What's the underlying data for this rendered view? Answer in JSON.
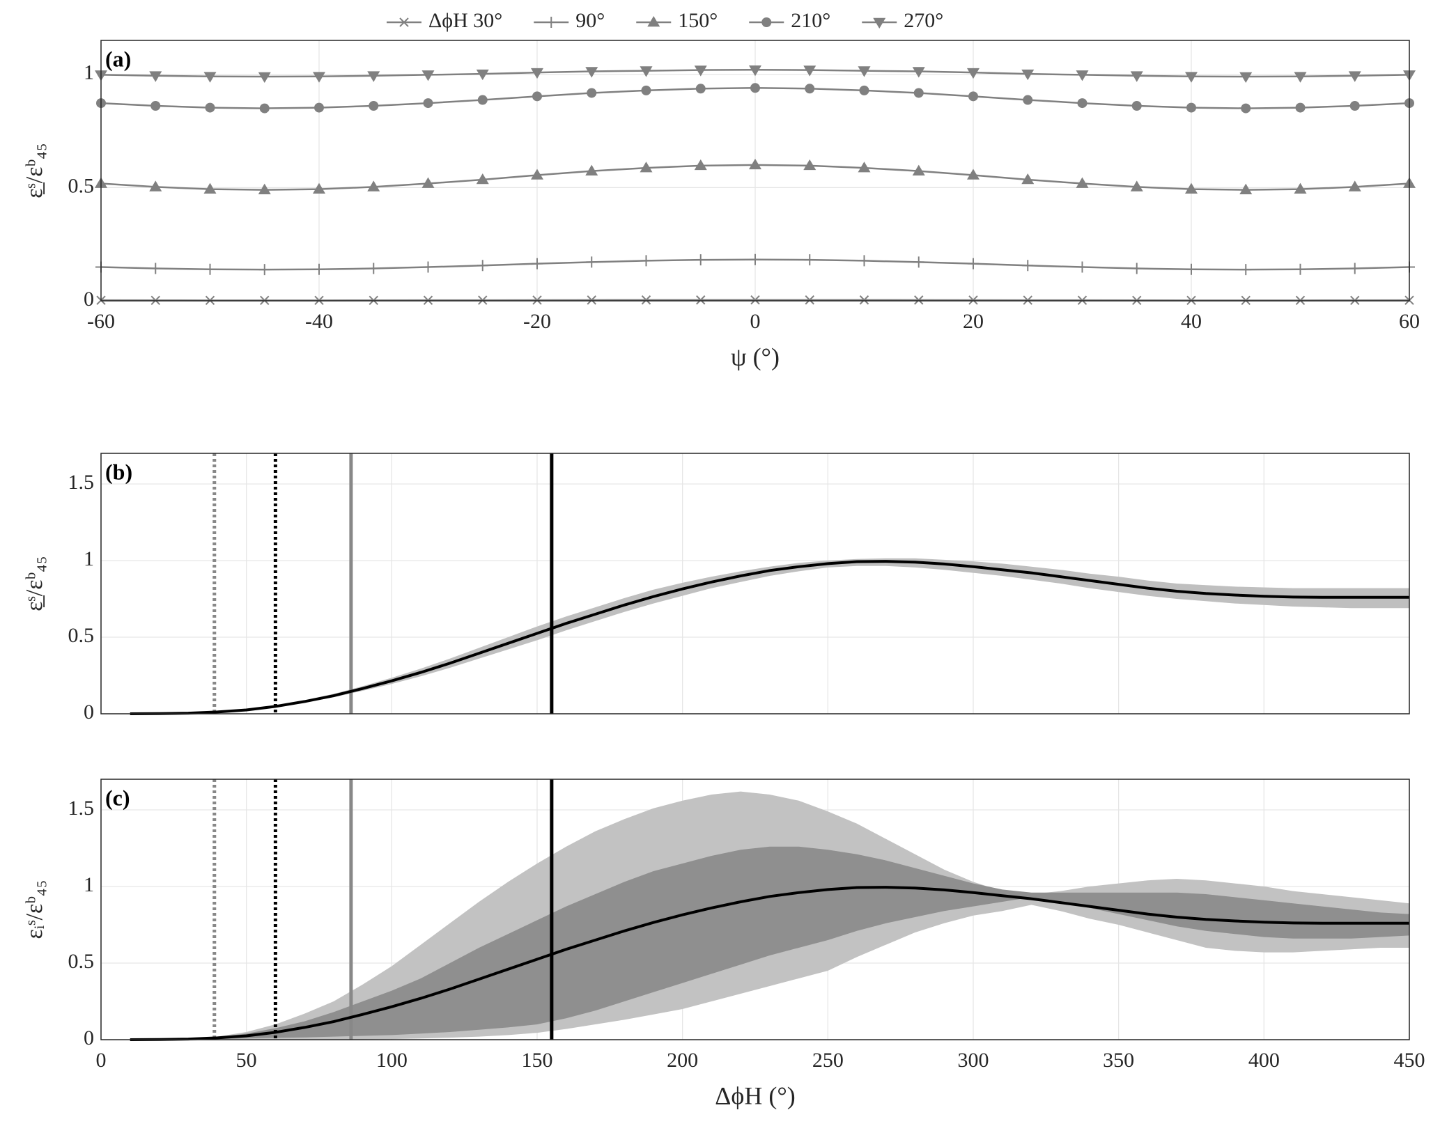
{
  "chart_data": [
    {
      "type": "line",
      "panel_label": "(a)",
      "xlabel": "ψ (°)",
      "ylabel": "ε̲ˢ/εᵇ₄₅",
      "xlim": [
        -60,
        60
      ],
      "xticks": [
        -60,
        -40,
        -20,
        0,
        20,
        40,
        60
      ],
      "ylim": [
        0,
        1.15
      ],
      "yticks": [
        0,
        0.5,
        1
      ],
      "grid": true,
      "legend": "top",
      "x": [
        -60,
        -55,
        -50,
        -45,
        -40,
        -35,
        -30,
        -25,
        -20,
        -15,
        -10,
        -5,
        0,
        5,
        10,
        15,
        20,
        25,
        30,
        35,
        40,
        45,
        50,
        55,
        60
      ],
      "series": [
        {
          "name": "ΔϕH 30°",
          "color": "#808080",
          "marker": "x",
          "values": [
            0.0025,
            0.0022,
            0.0021,
            0.002,
            0.0021,
            0.0022,
            0.0025,
            0.0028,
            0.0032,
            0.0035,
            0.0038,
            0.0039,
            0.004,
            0.0039,
            0.0038,
            0.0035,
            0.0032,
            0.0028,
            0.0025,
            0.0022,
            0.0021,
            0.002,
            0.0021,
            0.0022,
            0.0025
          ]
        },
        {
          "name": "90°",
          "color": "#808080",
          "marker": "+",
          "values": [
            0.149,
            0.143,
            0.139,
            0.138,
            0.139,
            0.143,
            0.149,
            0.156,
            0.164,
            0.171,
            0.177,
            0.181,
            0.182,
            0.181,
            0.177,
            0.171,
            0.164,
            0.156,
            0.149,
            0.143,
            0.139,
            0.138,
            0.139,
            0.143,
            0.149
          ]
        },
        {
          "name": "150°",
          "color": "#808080",
          "marker": "^",
          "values": [
            0.518,
            0.503,
            0.493,
            0.49,
            0.493,
            0.503,
            0.518,
            0.535,
            0.555,
            0.573,
            0.587,
            0.597,
            0.6,
            0.597,
            0.587,
            0.573,
            0.555,
            0.535,
            0.518,
            0.503,
            0.493,
            0.49,
            0.493,
            0.503,
            0.518
          ]
        },
        {
          "name": "210°",
          "color": "#808080",
          "marker": "o",
          "values": [
            0.873,
            0.861,
            0.853,
            0.85,
            0.853,
            0.861,
            0.873,
            0.887,
            0.903,
            0.918,
            0.929,
            0.937,
            0.94,
            0.937,
            0.929,
            0.918,
            0.903,
            0.887,
            0.873,
            0.861,
            0.853,
            0.85,
            0.853,
            0.861,
            0.873
          ]
        },
        {
          "name": "270°",
          "color": "#808080",
          "marker": "v",
          "values": [
            0.998,
            0.994,
            0.991,
            0.99,
            0.991,
            0.994,
            0.998,
            1.002,
            1.008,
            1.013,
            1.016,
            1.019,
            1.02,
            1.019,
            1.016,
            1.013,
            1.008,
            1.002,
            0.998,
            0.994,
            0.991,
            0.99,
            0.991,
            0.994,
            0.998
          ]
        }
      ]
    },
    {
      "type": "band",
      "panel_label": "(b)",
      "ylabel": "ε̲ˢ/εᵇ₄₅",
      "xlim": [
        0,
        450
      ],
      "xticks": [
        0,
        50,
        100,
        150,
        200,
        250,
        300,
        350,
        400,
        450
      ],
      "xtick_labels": false,
      "ylim": [
        0,
        1.7
      ],
      "yticks": [
        0,
        0.5,
        1,
        1.5
      ],
      "grid": true,
      "vlines": [
        {
          "x": 39,
          "color": "#888888",
          "dash": true
        },
        {
          "x": 60,
          "color": "#000000",
          "dash": true
        },
        {
          "x": 86,
          "color": "#888888",
          "dash": false
        },
        {
          "x": 155,
          "color": "#000000",
          "dash": false
        }
      ],
      "x": [
        10,
        20,
        30,
        40,
        50,
        60,
        70,
        80,
        90,
        100,
        110,
        120,
        130,
        140,
        150,
        160,
        170,
        180,
        190,
        200,
        210,
        220,
        230,
        240,
        250,
        260,
        270,
        280,
        290,
        300,
        310,
        320,
        330,
        340,
        350,
        360,
        370,
        380,
        390,
        400,
        410,
        420,
        430,
        440,
        450
      ],
      "bands": [
        {
          "color": "#bfbfbf",
          "lower": [
            0,
            0,
            0.003,
            0.01,
            0.022,
            0.043,
            0.073,
            0.108,
            0.15,
            0.195,
            0.245,
            0.3,
            0.36,
            0.42,
            0.48,
            0.545,
            0.605,
            0.665,
            0.72,
            0.77,
            0.82,
            0.86,
            0.9,
            0.93,
            0.955,
            0.965,
            0.965,
            0.955,
            0.94,
            0.92,
            0.9,
            0.875,
            0.85,
            0.82,
            0.795,
            0.77,
            0.75,
            0.735,
            0.72,
            0.71,
            0.7,
            0.695,
            0.69,
            0.69,
            0.69
          ],
          "upper": [
            0,
            0.002,
            0.006,
            0.015,
            0.029,
            0.054,
            0.088,
            0.13,
            0.18,
            0.235,
            0.295,
            0.36,
            0.43,
            0.5,
            0.57,
            0.635,
            0.695,
            0.755,
            0.81,
            0.855,
            0.895,
            0.93,
            0.96,
            0.985,
            1.0,
            1.01,
            1.015,
            1.015,
            1.005,
            0.995,
            0.98,
            0.96,
            0.94,
            0.915,
            0.895,
            0.87,
            0.85,
            0.84,
            0.83,
            0.825,
            0.82,
            0.82,
            0.82,
            0.82,
            0.82
          ]
        }
      ],
      "series": [
        {
          "color": "#000000",
          "values": [
            0,
            0.001,
            0.004,
            0.012,
            0.025,
            0.048,
            0.08,
            0.118,
            0.165,
            0.215,
            0.27,
            0.33,
            0.395,
            0.46,
            0.525,
            0.59,
            0.65,
            0.71,
            0.765,
            0.815,
            0.86,
            0.9,
            0.935,
            0.96,
            0.98,
            0.993,
            0.995,
            0.99,
            0.978,
            0.96,
            0.94,
            0.92,
            0.895,
            0.87,
            0.845,
            0.82,
            0.8,
            0.785,
            0.775,
            0.767,
            0.762,
            0.76,
            0.76,
            0.76,
            0.76
          ]
        }
      ]
    },
    {
      "type": "band",
      "panel_label": "(c)",
      "xlabel": "ΔϕH (°)",
      "ylabel": "εᵢˢ/εᵇ₄₅",
      "xlim": [
        0,
        450
      ],
      "xticks": [
        0,
        50,
        100,
        150,
        200,
        250,
        300,
        350,
        400,
        450
      ],
      "ylim": [
        0,
        1.7
      ],
      "yticks": [
        0,
        0.5,
        1,
        1.5
      ],
      "grid": true,
      "vlines": [
        {
          "x": 39,
          "color": "#888888",
          "dash": true
        },
        {
          "x": 60,
          "color": "#000000",
          "dash": true
        },
        {
          "x": 86,
          "color": "#888888",
          "dash": false
        },
        {
          "x": 155,
          "color": "#000000",
          "dash": false
        }
      ],
      "x": [
        10,
        20,
        30,
        40,
        50,
        60,
        70,
        80,
        90,
        100,
        110,
        120,
        130,
        140,
        150,
        160,
        170,
        180,
        190,
        200,
        210,
        220,
        230,
        240,
        250,
        260,
        270,
        280,
        290,
        300,
        310,
        320,
        330,
        340,
        350,
        360,
        370,
        380,
        390,
        400,
        410,
        420,
        430,
        440,
        450
      ],
      "bands": [
        {
          "color": "#c2c2c2",
          "lower": [
            0,
            0,
            0,
            0,
            0,
            0,
            0,
            0.001,
            0.002,
            0.004,
            0.008,
            0.013,
            0.02,
            0.03,
            0.045,
            0.07,
            0.1,
            0.13,
            0.165,
            0.2,
            0.25,
            0.3,
            0.35,
            0.4,
            0.45,
            0.54,
            0.62,
            0.7,
            0.76,
            0.81,
            0.84,
            0.88,
            0.84,
            0.79,
            0.75,
            0.7,
            0.65,
            0.6,
            0.58,
            0.57,
            0.57,
            0.58,
            0.59,
            0.6,
            0.6
          ],
          "upper": [
            0,
            0.001,
            0.006,
            0.02,
            0.05,
            0.1,
            0.17,
            0.25,
            0.36,
            0.48,
            0.62,
            0.76,
            0.9,
            1.03,
            1.15,
            1.26,
            1.36,
            1.44,
            1.51,
            1.56,
            1.6,
            1.62,
            1.6,
            1.56,
            1.49,
            1.41,
            1.31,
            1.21,
            1.11,
            1.03,
            0.97,
            0.95,
            0.97,
            1.0,
            1.02,
            1.04,
            1.05,
            1.04,
            1.02,
            1.0,
            0.97,
            0.95,
            0.93,
            0.91,
            0.89
          ]
        },
        {
          "color": "#8f8f8f",
          "lower": [
            0,
            0,
            0.002,
            0.005,
            0.008,
            0.012,
            0.015,
            0.02,
            0.025,
            0.03,
            0.04,
            0.05,
            0.065,
            0.08,
            0.1,
            0.14,
            0.19,
            0.25,
            0.31,
            0.37,
            0.43,
            0.49,
            0.55,
            0.6,
            0.65,
            0.71,
            0.76,
            0.8,
            0.84,
            0.87,
            0.9,
            0.93,
            0.9,
            0.86,
            0.82,
            0.78,
            0.74,
            0.71,
            0.69,
            0.67,
            0.66,
            0.66,
            0.66,
            0.67,
            0.68
          ],
          "upper": [
            0,
            0.001,
            0.005,
            0.018,
            0.04,
            0.075,
            0.12,
            0.18,
            0.25,
            0.32,
            0.4,
            0.5,
            0.6,
            0.69,
            0.78,
            0.87,
            0.95,
            1.03,
            1.1,
            1.15,
            1.2,
            1.24,
            1.26,
            1.26,
            1.24,
            1.21,
            1.17,
            1.12,
            1.07,
            1.02,
            0.98,
            0.96,
            0.96,
            0.96,
            0.96,
            0.96,
            0.96,
            0.95,
            0.93,
            0.91,
            0.89,
            0.87,
            0.85,
            0.83,
            0.82
          ]
        }
      ],
      "series": [
        {
          "color": "#000000",
          "values": [
            0,
            0.001,
            0.004,
            0.012,
            0.025,
            0.048,
            0.08,
            0.118,
            0.165,
            0.215,
            0.27,
            0.33,
            0.395,
            0.46,
            0.525,
            0.59,
            0.65,
            0.71,
            0.765,
            0.815,
            0.86,
            0.9,
            0.935,
            0.96,
            0.98,
            0.993,
            0.995,
            0.99,
            0.978,
            0.96,
            0.94,
            0.92,
            0.895,
            0.87,
            0.845,
            0.82,
            0.8,
            0.785,
            0.775,
            0.767,
            0.762,
            0.76,
            0.76,
            0.76,
            0.76
          ]
        }
      ]
    }
  ]
}
